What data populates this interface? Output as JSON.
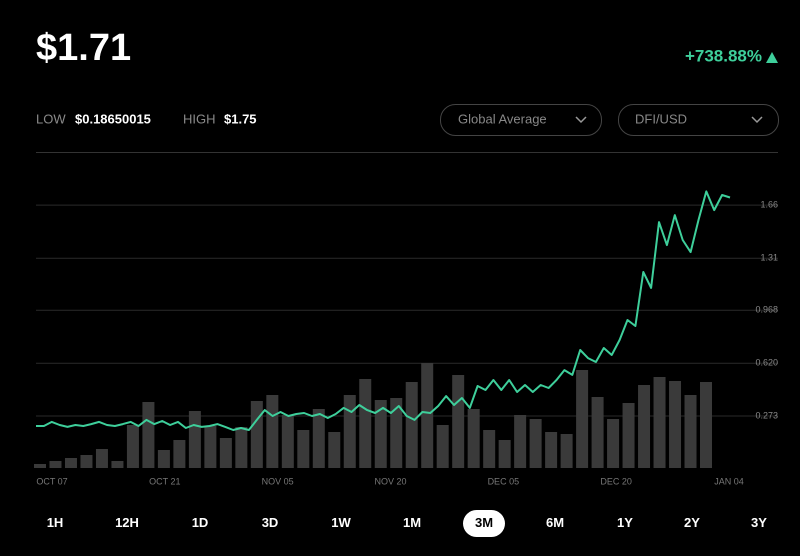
{
  "header": {
    "price": "$1.71",
    "change": "+738.88%",
    "low_label": "LOW",
    "low": "$0.18650015",
    "high_label": "HIGH",
    "high": "$1.75",
    "selectors": [
      "Global Average",
      "DFI/USD"
    ]
  },
  "chart_data": {
    "type": "line",
    "ylim": [
      -0.069,
      2.009
    ],
    "yticks": [
      0.273,
      {
        "value": 0.62,
        "label": "0.620"
      },
      0.968,
      1.31,
      1.66
    ],
    "x_labels": [
      "OCT 07",
      "OCT 21",
      "NOV 05",
      "NOV 20",
      "DEC 05",
      "DEC 20",
      "JAN 04"
    ],
    "grid": true,
    "y2lim": [
      0,
      316
    ],
    "series": [
      {
        "color": "#3ecf9b",
        "values": [
          0.207,
          0.207,
          0.234,
          0.214,
          0.201,
          0.214,
          0.207,
          0.22,
          0.234,
          0.214,
          0.207,
          0.22,
          0.234,
          0.207,
          0.247,
          0.22,
          0.24,
          0.214,
          0.234,
          0.194,
          0.214,
          0.201,
          0.207,
          0.22,
          0.201,
          0.181,
          0.194,
          0.181,
          0.247,
          0.312,
          0.273,
          0.299,
          0.273,
          0.286,
          0.293,
          0.273,
          0.286,
          0.26,
          0.286,
          0.326,
          0.299,
          0.345,
          0.312,
          0.293,
          0.326,
          0.293,
          0.339,
          0.273,
          0.247,
          0.299,
          0.293,
          0.339,
          0.404,
          0.345,
          0.391,
          0.326,
          0.47,
          0.444,
          0.51,
          0.444,
          0.51,
          0.431,
          0.477,
          0.431,
          0.477,
          0.457,
          0.51,
          0.575,
          0.543,
          0.707,
          0.654,
          0.628,
          0.72,
          0.674,
          0.773,
          0.904,
          0.865,
          1.22,
          1.115,
          1.548,
          1.397,
          1.594,
          1.43,
          1.351,
          1.562,
          1.75,
          1.627,
          1.726,
          1.71
        ]
      },
      {
        "type": "bar",
        "axis": "y2",
        "color": "#3a3a3a",
        "values": [
          4,
          7,
          10,
          13,
          19,
          7,
          43,
          66,
          18,
          28,
          57,
          42,
          30,
          41,
          67,
          73,
          53,
          38,
          59,
          36,
          73,
          89,
          68,
          70,
          86,
          105,
          43,
          93,
          59,
          38,
          28,
          53,
          49,
          36,
          34,
          98,
          71,
          49,
          65,
          83,
          91,
          87,
          73,
          86
        ]
      }
    ]
  },
  "ranges": {
    "options": [
      "1H",
      "12H",
      "1D",
      "3D",
      "1W",
      "1M",
      "3M",
      "6M",
      "1Y",
      "2Y",
      "3Y"
    ],
    "selected": 6
  }
}
